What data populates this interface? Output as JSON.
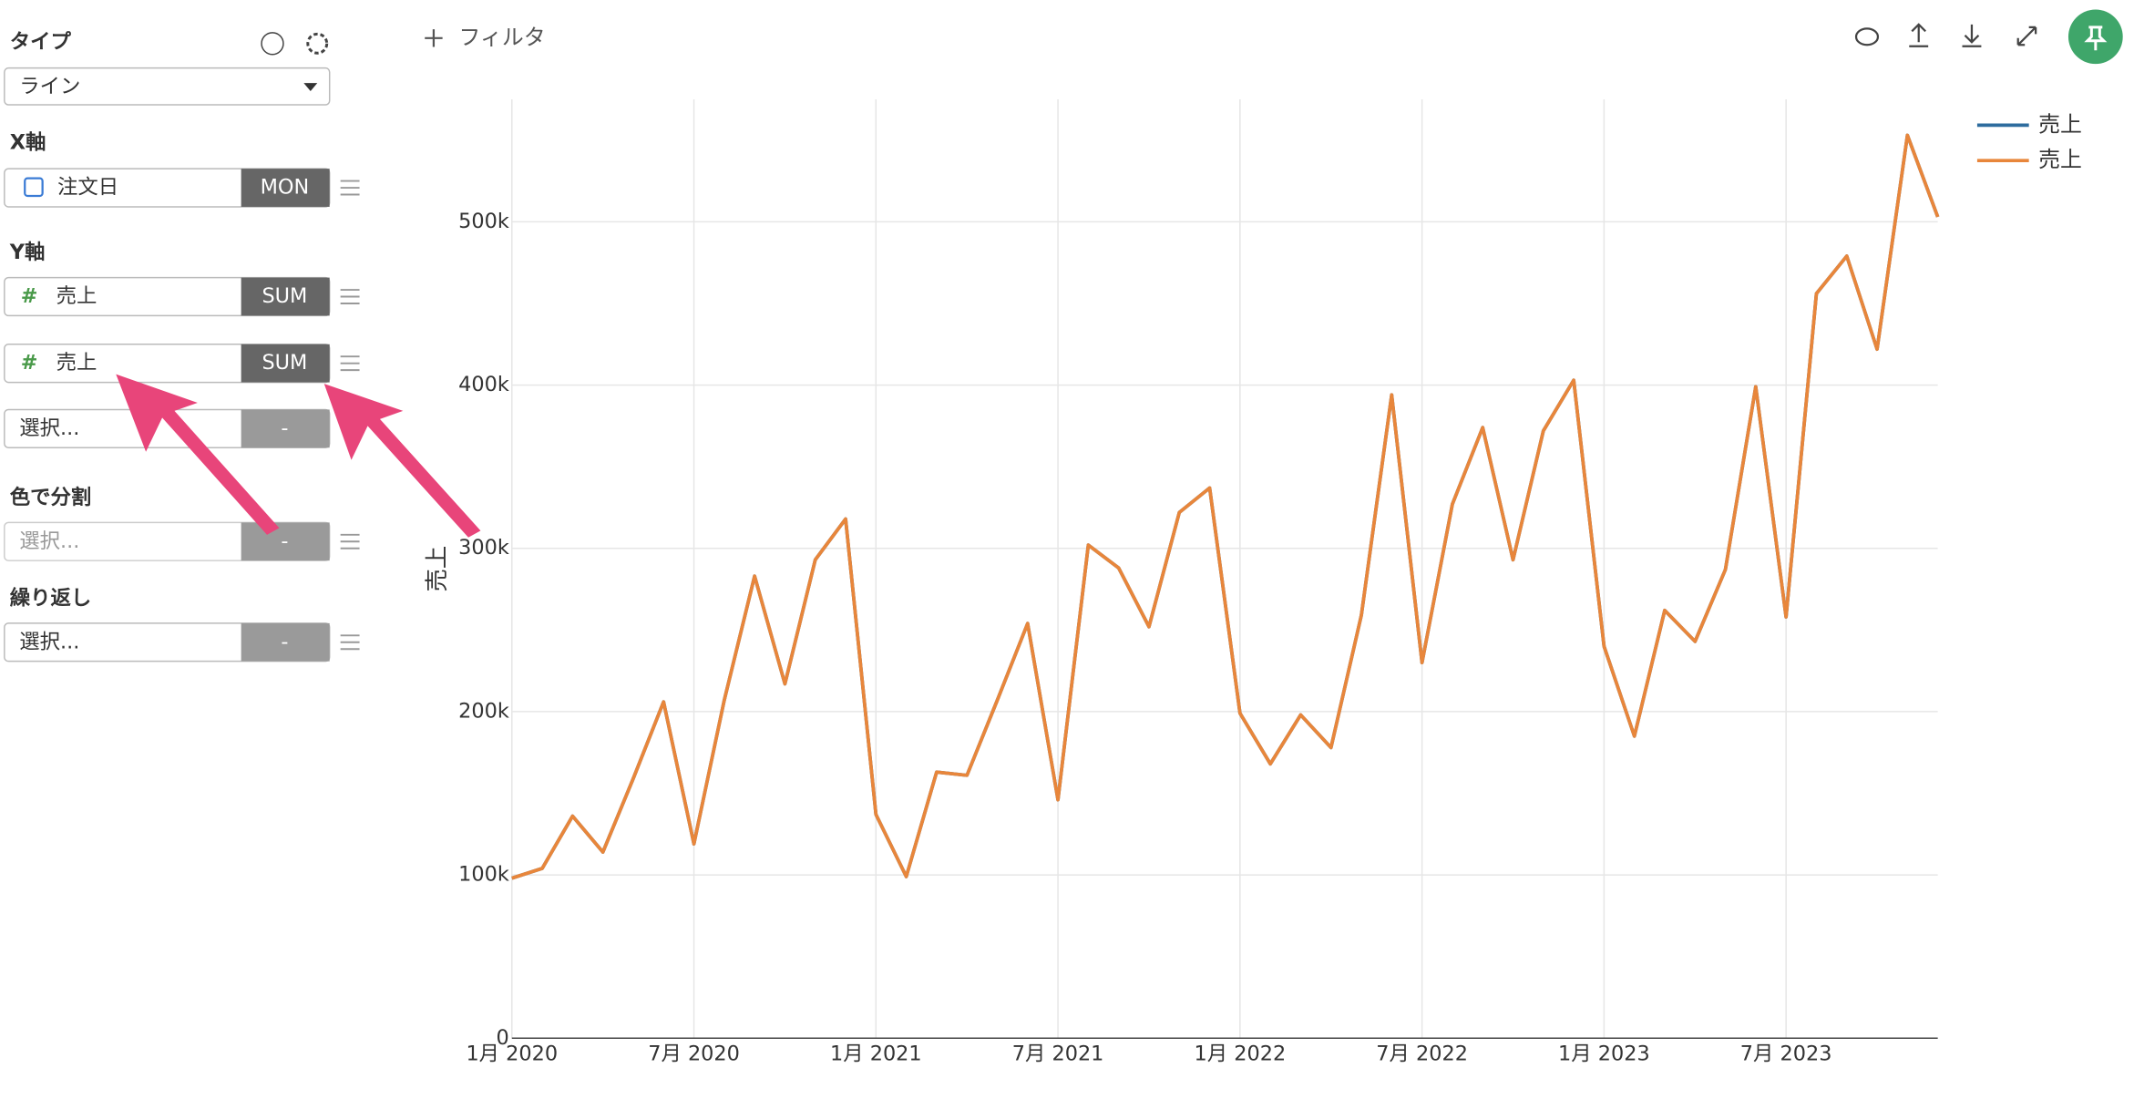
{
  "toolbar": {
    "filter": "フィルタ"
  },
  "sidebar": {
    "type_label": "タイプ",
    "type_value": "ライン",
    "x_axis": {
      "label": "X軸",
      "field": "注文日",
      "agg": "MON"
    },
    "y_axis": {
      "label": "Y軸",
      "fields": [
        {
          "field": "売上",
          "agg": "SUM"
        },
        {
          "field": "売上",
          "agg": "SUM"
        },
        {
          "field": "選択...",
          "agg": "-"
        }
      ]
    },
    "color": {
      "label": "色で分割",
      "field": "選択...",
      "agg": "-"
    },
    "repeat": {
      "label": "繰り返し",
      "field": "選択...",
      "agg": "-"
    }
  },
  "chart_data": {
    "type": "line",
    "ylabel": "売上",
    "x": [
      "2020-01",
      "2020-02",
      "2020-03",
      "2020-04",
      "2020-05",
      "2020-06",
      "2020-07",
      "2020-08",
      "2020-09",
      "2020-10",
      "2020-11",
      "2020-12",
      "2021-01",
      "2021-02",
      "2021-03",
      "2021-04",
      "2021-05",
      "2021-06",
      "2021-07",
      "2021-08",
      "2021-09",
      "2021-10",
      "2021-11",
      "2021-12",
      "2022-01",
      "2022-02",
      "2022-03",
      "2022-04",
      "2022-05",
      "2022-06",
      "2022-07",
      "2022-08",
      "2022-09",
      "2022-10",
      "2022-11",
      "2022-12",
      "2023-01",
      "2023-02",
      "2023-03",
      "2023-04",
      "2023-05",
      "2023-06",
      "2023-07",
      "2023-08",
      "2023-09",
      "2023-10",
      "2023-11",
      "2023-12"
    ],
    "series": [
      {
        "name": "売上",
        "color": "#2e6c9e",
        "values": [
          98000,
          104000,
          136000,
          114000,
          159000,
          206000,
          119000,
          207000,
          283000,
          217000,
          293000,
          318000,
          137000,
          99000,
          163000,
          161000,
          207000,
          254000,
          146000,
          302000,
          288000,
          252000,
          322000,
          337000,
          199000,
          168000,
          198000,
          178000,
          259000,
          394000,
          230000,
          327000,
          374000,
          293000,
          372000,
          403000,
          240000,
          185000,
          262000,
          243000,
          287000,
          399000,
          258000,
          456000,
          479000,
          422000,
          553000,
          503000
        ]
      },
      {
        "name": "売上",
        "color": "#e8863b",
        "values": [
          98000,
          104000,
          136000,
          114000,
          159000,
          206000,
          119000,
          207000,
          283000,
          217000,
          293000,
          318000,
          137000,
          99000,
          163000,
          161000,
          207000,
          254000,
          146000,
          302000,
          288000,
          252000,
          322000,
          337000,
          199000,
          168000,
          198000,
          178000,
          259000,
          394000,
          230000,
          327000,
          374000,
          293000,
          372000,
          403000,
          240000,
          185000,
          262000,
          243000,
          287000,
          399000,
          258000,
          456000,
          479000,
          422000,
          553000,
          503000
        ]
      }
    ],
    "xlim": [
      "2020-01",
      "2023-12"
    ],
    "xticks": [
      {
        "value": "2020-01",
        "label": "1月 2020"
      },
      {
        "value": "2020-07",
        "label": "7月 2020"
      },
      {
        "value": "2021-01",
        "label": "1月 2021"
      },
      {
        "value": "2021-07",
        "label": "7月 2021"
      },
      {
        "value": "2022-01",
        "label": "1月 2022"
      },
      {
        "value": "2022-07",
        "label": "7月 2022"
      },
      {
        "value": "2023-01",
        "label": "1月 2023"
      },
      {
        "value": "2023-07",
        "label": "7月 2023"
      }
    ],
    "ylim": [
      0,
      575000
    ],
    "yticks": [
      0,
      {
        "value": 100000,
        "label": "100k"
      },
      {
        "value": 200000,
        "label": "200k"
      },
      {
        "value": 300000,
        "label": "300k"
      },
      {
        "value": 400000,
        "label": "400k"
      },
      {
        "value": 500000,
        "label": "500k"
      }
    ],
    "grid": true,
    "legend": "top-right"
  }
}
